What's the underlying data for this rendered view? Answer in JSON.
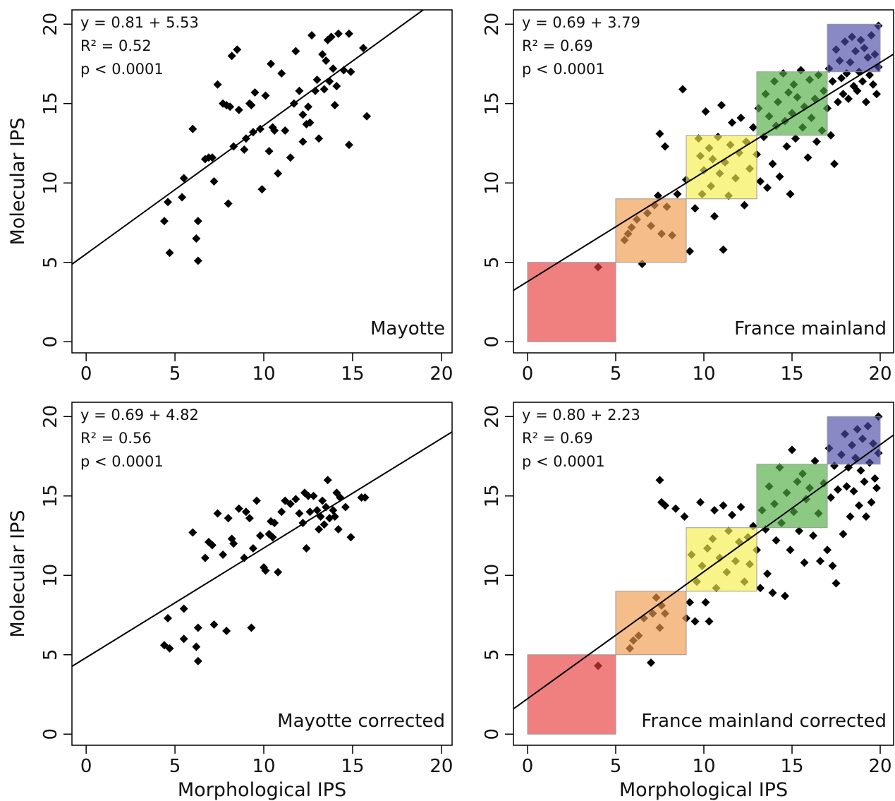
{
  "chart_data": [
    {
      "type": "scatter",
      "ylabel": "Molecular IPS",
      "annotations": [
        "y = 0.81 + 5.53",
        "R² = 0.52",
        "p < 0.0001"
      ],
      "label": "Mayotte",
      "fit": {
        "slope": 0.81,
        "intercept": 5.53
      },
      "color": "#000000",
      "xlim": [
        -0.8,
        20.6
      ],
      "ylim": [
        -0.7,
        20.9
      ],
      "xticks": [
        0,
        5,
        10,
        15,
        20
      ],
      "yticks": [
        0,
        5,
        10,
        15,
        20
      ],
      "x": [
        4.4,
        4.6,
        4.7,
        5.4,
        5.5,
        6.0,
        6.2,
        6.3,
        6.3,
        6.7,
        6.9,
        7.1,
        7.2,
        7.4,
        7.7,
        7.9,
        8.0,
        8.1,
        8.2,
        8.3,
        8.5,
        8.6,
        8.9,
        9.0,
        9.2,
        9.3,
        9.4,
        9.5,
        9.8,
        9.9,
        10.1,
        10.3,
        10.4,
        10.5,
        10.6,
        10.8,
        11.0,
        11.2,
        11.5,
        11.7,
        11.8,
        12.0,
        12.2,
        12.2,
        12.4,
        12.5,
        12.7,
        12.9,
        13.0,
        13.1,
        13.3,
        13.4,
        13.5,
        13.6,
        13.7,
        13.9,
        14.0,
        14.2,
        14.5,
        14.8,
        14.9,
        14.8,
        15.6,
        15.8,
        12.6,
        13.8,
        14.1
      ],
      "values": [
        7.6,
        8.8,
        5.6,
        9.1,
        10.3,
        13.4,
        6.5,
        7.6,
        5.1,
        11.5,
        11.6,
        11.6,
        10.1,
        16.2,
        15.0,
        14.9,
        8.7,
        14.8,
        18.0,
        12.3,
        18.4,
        14.6,
        12.1,
        12.8,
        15.0,
        14.9,
        13.2,
        15.7,
        13.4,
        9.6,
        15.5,
        12.0,
        17.5,
        13.5,
        13.3,
        10.6,
        16.9,
        13.3,
        11.6,
        15.0,
        18.3,
        15.8,
        12.6,
        14.3,
        13.7,
        14.8,
        19.3,
        15.8,
        16.5,
        12.8,
        18.1,
        15.9,
        17.7,
        19.0,
        16.4,
        17.2,
        14.9,
        19.4,
        17.1,
        12.4,
        17.0,
        19.4,
        18.5,
        14.2,
        13.8,
        19.2,
        16.1
      ]
    },
    {
      "type": "scatter",
      "annotations": [
        "y = 0.69 + 3.79",
        "R² = 0.69",
        "p < 0.0001"
      ],
      "label": "France mainland",
      "fit": {
        "slope": 0.69,
        "intercept": 3.79
      },
      "color": "#000000",
      "regions": [
        {
          "x": [
            0,
            5
          ],
          "y": [
            0,
            5
          ],
          "color": "#e83c3c"
        },
        {
          "x": [
            5,
            9
          ],
          "y": [
            5,
            9
          ],
          "color": "#f09a4a"
        },
        {
          "x": [
            9,
            13
          ],
          "y": [
            9,
            13
          ],
          "color": "#f4ee4a"
        },
        {
          "x": [
            13,
            17
          ],
          "y": [
            13,
            17
          ],
          "color": "#4fae42"
        },
        {
          "x": [
            17,
            20
          ],
          "y": [
            17,
            20
          ],
          "color": "#4a4aa8"
        }
      ],
      "xlim": [
        -0.8,
        20.76
      ],
      "ylim": [
        -0.7,
        20.9
      ],
      "xticks": [
        0,
        5,
        10,
        15,
        20
      ],
      "yticks": [
        0,
        5,
        10,
        15,
        20
      ],
      "x": [
        4,
        5.5,
        5.7,
        5.9,
        6.2,
        6.5,
        6.8,
        7,
        7.2,
        7.4,
        7.5,
        7.6,
        7.8,
        7.9,
        8.2,
        8.5,
        8.8,
        9,
        9.2,
        9.5,
        9.7,
        9.8,
        9.9,
        10,
        10.1,
        10.3,
        10.4,
        10.5,
        10.6,
        10.8,
        10.9,
        11,
        11.1,
        11.2,
        11.4,
        11.5,
        11.6,
        11.8,
        12,
        12.1,
        12.3,
        12.4,
        12.6,
        12.8,
        13,
        13.1,
        13.2,
        13.4,
        13.5,
        13.6,
        13.7,
        13.9,
        14,
        14.1,
        14.2,
        14.3,
        14.5,
        14.6,
        14.7,
        14.8,
        14.9,
        15,
        15.1,
        15.2,
        15.3,
        15.5,
        15.6,
        15.7,
        15.9,
        16,
        16.1,
        16.3,
        16.4,
        16.5,
        16.7,
        16.8,
        17,
        17.1,
        17.2,
        17.3,
        17.4,
        17.5,
        17.6,
        17.7,
        17.8,
        17.9,
        18,
        18.1,
        18.2,
        18.3,
        18.4,
        18.5,
        18.6,
        18.7,
        18.8,
        18.9,
        19,
        19.1,
        19.2,
        19.3,
        19.4,
        19.5,
        19.6,
        19.7,
        19.8,
        19.9,
        19.9
      ],
      "values": [
        4.7,
        6.4,
        6.8,
        7.2,
        7.7,
        4.9,
        8.1,
        7.3,
        8.6,
        9.2,
        13.1,
        6.8,
        12.3,
        8.5,
        6.7,
        9.3,
        15.9,
        10.2,
        5.7,
        8.4,
        12.8,
        11.7,
        9.3,
        10.8,
        14.5,
        12.2,
        9.8,
        11.5,
        7.9,
        12.9,
        10.6,
        14.9,
        5.8,
        11.3,
        9.2,
        12.4,
        13.8,
        10.3,
        11.9,
        14.1,
        8.6,
        12.6,
        10.9,
        13.5,
        11.8,
        14.7,
        10.1,
        12.9,
        15.6,
        9.7,
        14.2,
        11.2,
        16.4,
        13.6,
        15.1,
        10.4,
        16.9,
        13.9,
        12.3,
        15.7,
        9.3,
        14.4,
        16.2,
        12.8,
        15.4,
        17.1,
        13.5,
        14.8,
        11.6,
        16.5,
        14.1,
        15.3,
        12.6,
        16.8,
        13.3,
        15.8,
        14.7,
        17.2,
        13.0,
        16.4,
        11.2,
        18.4,
        15.1,
        17.7,
        16.6,
        15.6,
        18.9,
        16.9,
        15.3,
        17.6,
        19.2,
        16.1,
        18.3,
        15.8,
        17.0,
        19.0,
        16.4,
        18.5,
        15.1,
        17.9,
        16.8,
        19.3,
        16.2,
        18.1,
        15.6,
        19.9,
        17.3
      ]
    },
    {
      "type": "scatter",
      "ylabel": "Molecular IPS",
      "xlabel": "Morphological IPS",
      "annotations": [
        "y = 0.69 + 4.82",
        "R² = 0.56",
        "p < 0.0001"
      ],
      "label": "Mayotte corrected",
      "fit": {
        "slope": 0.69,
        "intercept": 4.82
      },
      "color": "#000000",
      "xlim": [
        -0.8,
        20.6
      ],
      "ylim": [
        -0.7,
        20.9
      ],
      "xticks": [
        0,
        5,
        10,
        15,
        20
      ],
      "yticks": [
        0,
        5,
        10,
        15,
        20
      ],
      "x": [
        4.4,
        4.6,
        4.7,
        5.5,
        5.5,
        6.0,
        6.2,
        6.3,
        6.3,
        6.7,
        6.9,
        7.1,
        7.2,
        7.4,
        7.7,
        7.9,
        8.0,
        8.2,
        8.3,
        8.6,
        8.9,
        9.0,
        9.2,
        9.3,
        9.4,
        9.6,
        9.8,
        10.0,
        10.1,
        10.3,
        10.4,
        10.5,
        10.6,
        10.8,
        11.0,
        11.2,
        11.8,
        12.0,
        12.2,
        12.3,
        12.4,
        12.6,
        12.8,
        13.0,
        13.1,
        13.3,
        13.4,
        13.5,
        13.6,
        13.7,
        13.9,
        14.0,
        14.1,
        14.3,
        14.6,
        14.9,
        15.5,
        15.7,
        12.5,
        11.5,
        13.2,
        14.2
      ],
      "values": [
        5.6,
        7.3,
        5.4,
        6.0,
        7.9,
        12.7,
        5.5,
        4.6,
        6.7,
        11.1,
        12.1,
        11.9,
        6.9,
        13.9,
        11.3,
        6.5,
        13.6,
        12.3,
        12.0,
        14.2,
        11.1,
        14.0,
        13.6,
        6.7,
        11.7,
        14.7,
        12.5,
        10.5,
        10.3,
        12.6,
        13.4,
        12.4,
        13.3,
        10.2,
        14.0,
        14.7,
        14.8,
        13.9,
        13.3,
        15.2,
        11.7,
        14.0,
        15.0,
        14.1,
        12.9,
        14.7,
        13.2,
        14.3,
        16.0,
        13.6,
        14.1,
        13.7,
        15.2,
        14.9,
        14.3,
        12.4,
        14.9,
        14.9,
        15.0,
        14.5,
        13.7,
        12.9
      ]
    },
    {
      "type": "scatter",
      "xlabel": "Morphological IPS",
      "annotations": [
        "y = 0.80 + 2.23",
        "R² = 0.69",
        "p < 0.0001"
      ],
      "label": "France mainland corrected",
      "fit": {
        "slope": 0.8,
        "intercept": 2.23
      },
      "color": "#000000",
      "regions": [
        {
          "x": [
            0,
            5
          ],
          "y": [
            0,
            5
          ],
          "color": "#e83c3c"
        },
        {
          "x": [
            5,
            9
          ],
          "y": [
            5,
            9
          ],
          "color": "#f09a4a"
        },
        {
          "x": [
            9,
            13
          ],
          "y": [
            9,
            13
          ],
          "color": "#f4ee4a"
        },
        {
          "x": [
            13,
            17
          ],
          "y": [
            13,
            17
          ],
          "color": "#4fae42"
        },
        {
          "x": [
            17,
            20
          ],
          "y": [
            17,
            20
          ],
          "color": "#4a4aa8"
        }
      ],
      "xlim": [
        -0.8,
        20.76
      ],
      "ylim": [
        -0.7,
        20.9
      ],
      "xticks": [
        0,
        5,
        10,
        15,
        20
      ],
      "yticks": [
        0,
        5,
        10,
        15,
        20
      ],
      "x": [
        4,
        5.8,
        6,
        6.3,
        6.6,
        7,
        7.1,
        7.3,
        7.5,
        7.6,
        7.8,
        7.6,
        7.8,
        7.5,
        8.4,
        8.9,
        9,
        9.2,
        9.3,
        9.5,
        9.6,
        9.8,
        9.9,
        10.1,
        10.2,
        10.3,
        10.5,
        10.6,
        10.7,
        10.9,
        11.1,
        11.3,
        11.4,
        11.6,
        11.8,
        12,
        12.1,
        12.3,
        12.5,
        12.6,
        12.8,
        13,
        13.2,
        13.3,
        13.5,
        13.6,
        13.7,
        13.9,
        14,
        14.1,
        14.3,
        14.4,
        14.6,
        14.7,
        14.9,
        15,
        15.1,
        15.3,
        15.4,
        15.6,
        15.7,
        15.8,
        16,
        16.2,
        16.3,
        16.5,
        16.6,
        16.8,
        17,
        17.1,
        17.2,
        17.3,
        17.4,
        17.5,
        17.6,
        17.8,
        17.9,
        18,
        18.1,
        18.2,
        18.3,
        18.4,
        18.5,
        18.6,
        18.7,
        18.8,
        18.9,
        19,
        19.1,
        19.2,
        19.3,
        19.4,
        19.5,
        19.6,
        19.7,
        19.8,
        19.9,
        19.9
      ],
      "values": [
        4.3,
        5.4,
        5.9,
        6.2,
        7.3,
        4.5,
        7.6,
        8.6,
        6.7,
        8.1,
        7.6,
        14.6,
        14.4,
        16,
        14.2,
        13.7,
        7.3,
        8.3,
        11.3,
        7.1,
        9.6,
        14.6,
        10.6,
        8.3,
        11.7,
        7.1,
        12.3,
        14.1,
        9.2,
        11.1,
        14.4,
        10.2,
        12.8,
        13.8,
        10.9,
        12.1,
        14.3,
        9.6,
        12.4,
        10.7,
        13.1,
        11.6,
        9.2,
        14.1,
        12.9,
        10.1,
        15.6,
        8.9,
        14.5,
        12.2,
        16.8,
        13.3,
        8.7,
        15.2,
        11.6,
        17.9,
        14.0,
        15.9,
        12.8,
        16.4,
        10.8,
        14.8,
        15.5,
        12.5,
        17.2,
        13.9,
        10.9,
        15.8,
        11.6,
        18.0,
        14.9,
        10.6,
        16.9,
        9.5,
        15.4,
        17.6,
        12.6,
        18.9,
        15.6,
        16.8,
        13.7,
        18.2,
        15.3,
        17.4,
        19.2,
        14.4,
        16.6,
        18.6,
        15.9,
        13.7,
        19.4,
        17.1,
        14.6,
        18.3,
        16.1,
        15.5,
        20,
        17.7
      ]
    }
  ]
}
